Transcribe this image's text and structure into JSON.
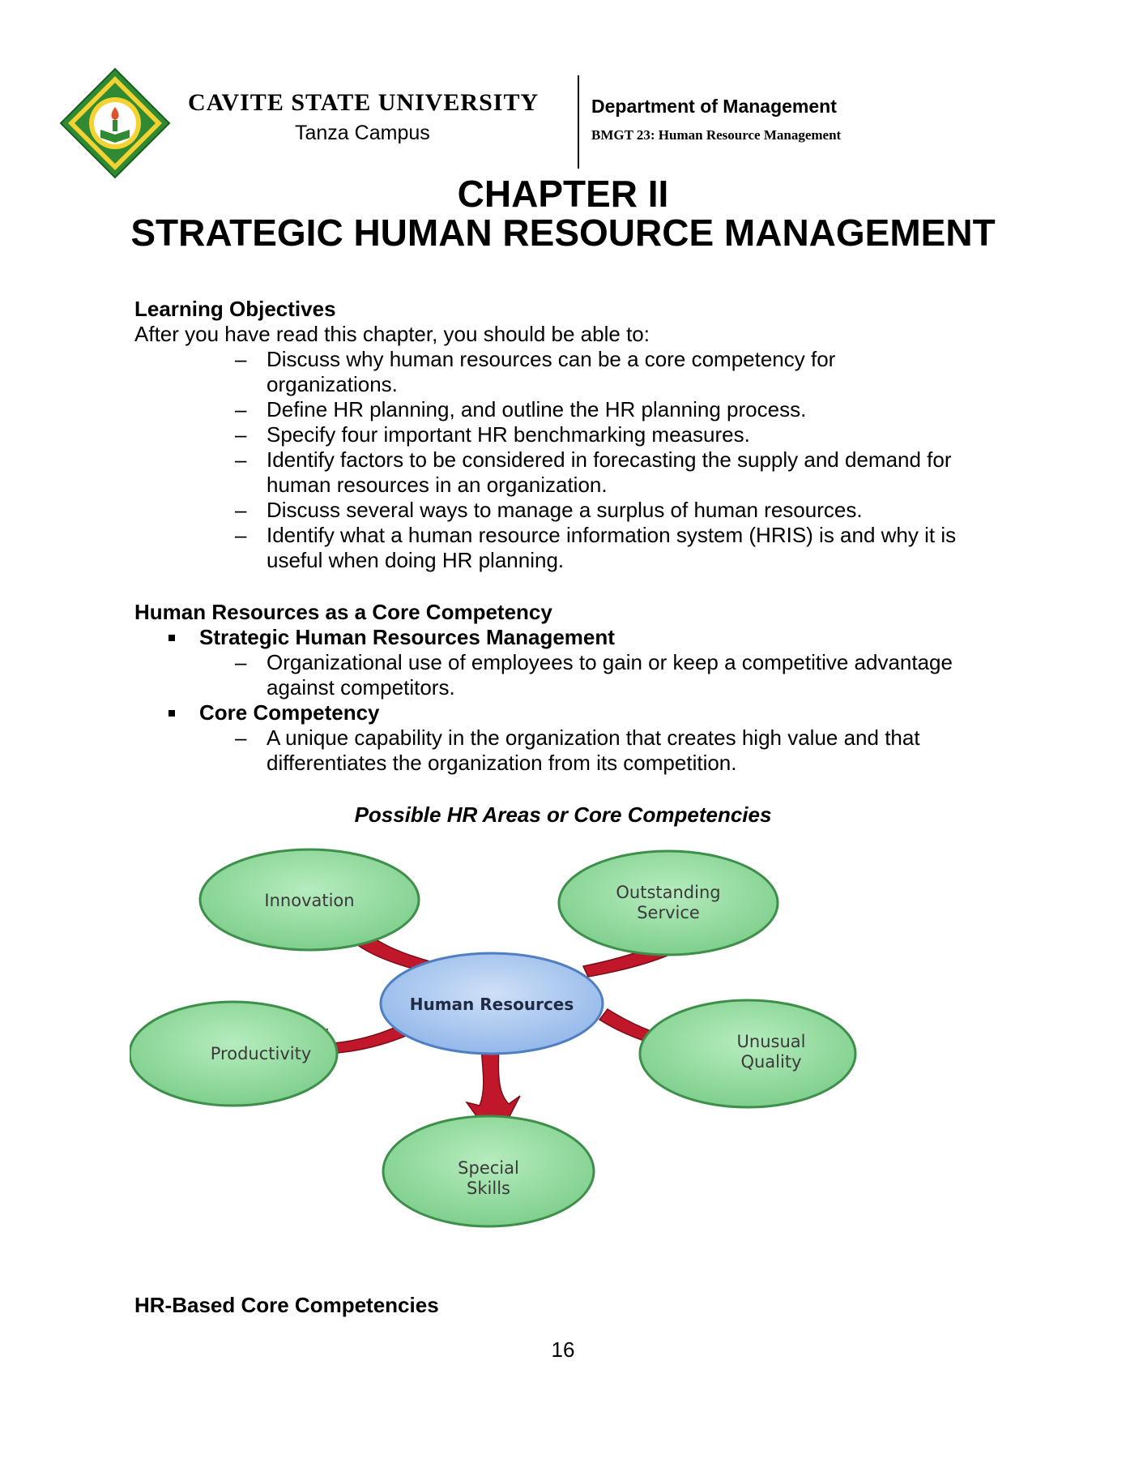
{
  "header": {
    "university": "CAVITE STATE UNIVERSITY",
    "campus": "Tanza Campus",
    "department": "Department of Management",
    "course": "BMGT 23: Human Resource Management",
    "logo_icon": "university-seal-icon"
  },
  "chapter": "CHAPTER II",
  "title": "STRATEGIC HUMAN RESOURCE MANAGEMENT",
  "learning_objectives": {
    "heading": "Learning Objectives",
    "intro": "After you have read this chapter, you should be able to:",
    "items": [
      [
        "Discuss why human resources can be a core competency for",
        "organizations."
      ],
      [
        "Define HR planning, and outline the HR planning process."
      ],
      [
        "Specify four important HR benchmarking measures."
      ],
      [
        "Identify factors to be considered in forecasting the supply and demand for",
        "human resources in an organization."
      ],
      [
        "Discuss several ways to manage a surplus of human resources."
      ],
      [
        "Identify what a human resource information system (HRIS) is and why it is",
        "useful when doing HR planning."
      ]
    ]
  },
  "core_competency_section": {
    "heading": "Human Resources as a Core Competency",
    "bullets": [
      {
        "term": "Strategic Human Resources Management",
        "lines": [
          "Organizational use of employees to gain or keep a competitive advantage",
          "against competitors."
        ]
      },
      {
        "term": "Core Competency",
        "lines": [
          "A unique capability in the organization that creates high value and that",
          "differentiates the organization from its competition."
        ]
      }
    ]
  },
  "diagram": {
    "title": "Possible HR Areas or Core Competencies",
    "center": "Human Resources",
    "innovation": "Innovation",
    "outstanding_1": "Outstanding",
    "outstanding_2": "Service",
    "productivity": "Productivity",
    "unusual_1": "Unusual",
    "unusual_2": "Quality",
    "special_1": "Special",
    "special_2": "Skills",
    "colors": {
      "outer": "#8ed89b",
      "outer_stroke": "#3d8f4a",
      "center": "#a9c7ef",
      "center_stroke": "#4f7fc0",
      "arrow": "#c0182a"
    }
  },
  "next_heading": "HR-Based Core Competencies",
  "page_number": "16"
}
